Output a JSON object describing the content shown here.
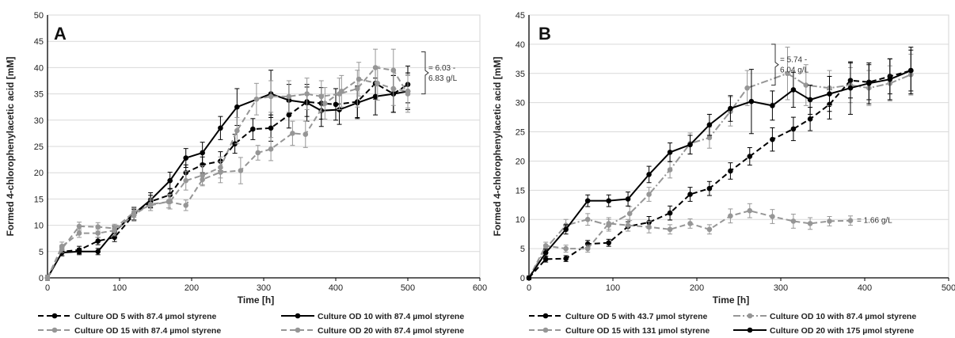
{
  "chart_data": [
    {
      "type": "line",
      "panel_label": "A",
      "xlabel": "Time [h]",
      "ylabel": "Formed 4-chlorophenylacetic acid [mM]",
      "xlim": [
        0,
        600
      ],
      "ylim": [
        0,
        50
      ],
      "xticks": [
        "0",
        "100",
        "200",
        "300",
        "400",
        "500",
        "600"
      ],
      "yticks": [
        "0",
        "5",
        "10",
        "15",
        "20",
        "25",
        "30",
        "35",
        "40",
        "45",
        "50"
      ],
      "grid": "horizontal",
      "annotation": {
        "text_line1": "= 6.03 -",
        "text_line2": "6.83 g/L",
        "y_range": [
          35,
          43
        ]
      },
      "legend": [
        "Culture OD 5 with 87.4 µmol styrene",
        "Culture OD 10 with 87.4 µmol styrene",
        "Culture OD 15 with 87.4 µmol styrene",
        "Culture OD 20 with 87.4 µmol styrene"
      ],
      "series": [
        {
          "name": "Culture OD 5 with 87.4 µmol styrene",
          "color": "#000000",
          "style": "dash",
          "x": [
            0,
            20,
            44,
            70,
            93,
            120,
            143,
            170,
            192,
            215,
            240,
            260,
            285,
            310,
            335,
            360,
            380,
            400,
            430,
            455,
            480,
            500
          ],
          "y": [
            0,
            5,
            5.3,
            7,
            7.7,
            12,
            14.5,
            15.8,
            20,
            21.5,
            22.2,
            25.5,
            28.3,
            28.5,
            31,
            33.5,
            33.2,
            33,
            33.5,
            37,
            35,
            36.8
          ],
          "err": [
            0.5,
            0.8,
            0.7,
            0.7,
            0.8,
            1,
            1.2,
            1.2,
            1.5,
            1.5,
            1.8,
            1.8,
            2,
            2.5,
            2.5,
            2.8,
            3,
            3,
            3,
            3,
            3.5,
            3.5
          ]
        },
        {
          "name": "Culture OD 10 with 87.4 µmol styrene",
          "color": "#000000",
          "style": "solid",
          "x": [
            0,
            20,
            44,
            70,
            93,
            120,
            143,
            170,
            192,
            215,
            240,
            263,
            310,
            335,
            360,
            380,
            405,
            430,
            455,
            480,
            500
          ],
          "y": [
            0,
            4.8,
            5,
            5,
            8.8,
            12.2,
            14.8,
            18.5,
            22.8,
            23.8,
            28.5,
            32.5,
            35,
            33.8,
            33.3,
            31.8,
            32,
            33.3,
            34.5,
            35,
            35.5
          ],
          "err": [
            0.5,
            0.6,
            0.6,
            0.6,
            1,
            1.2,
            1.4,
            1.6,
            1.8,
            2,
            2.2,
            3.5,
            4.5,
            3,
            3.5,
            3,
            2.8,
            3,
            3.5,
            3.5,
            3.5
          ]
        },
        {
          "name": "Culture OD 15 with 87.4 µmol styrene",
          "color": "#969696",
          "style": "dash",
          "x": [
            0,
            20,
            44,
            70,
            93,
            120,
            143,
            170,
            192,
            215,
            240,
            263,
            290,
            310,
            335,
            360,
            380,
            405,
            430,
            455,
            480,
            500
          ],
          "y": [
            0,
            6,
            8.5,
            8.5,
            9,
            12,
            14,
            14.5,
            18.5,
            19.5,
            21,
            28,
            34,
            34.5,
            34.5,
            35,
            34.5,
            35,
            36,
            40,
            39.5,
            35
          ],
          "err": [
            0.5,
            0.8,
            0.8,
            0.8,
            1,
            1.2,
            1.2,
            1.4,
            1.8,
            1.8,
            2,
            2.5,
            3,
            3,
            3,
            3,
            3,
            3,
            3.5,
            3.5,
            4,
            3.5
          ]
        },
        {
          "name": "Culture OD 20 with 87.4 µmol styrene",
          "color": "#969696",
          "style": "dash",
          "x": [
            0,
            20,
            44,
            70,
            93,
            120,
            143,
            168,
            192,
            215,
            240,
            268,
            292,
            310,
            340,
            358,
            385,
            408,
            432,
            458,
            480,
            500
          ],
          "y": [
            0,
            5.5,
            9.8,
            9.7,
            9.4,
            12.5,
            13.8,
            14.5,
            13.8,
            18.7,
            20.1,
            20.4,
            23.8,
            24.5,
            27.5,
            27.3,
            33.2,
            35.5,
            37.8,
            37,
            36,
            35.5
          ],
          "err": [
            0.5,
            0.7,
            0.8,
            0.8,
            0.8,
            1,
            1,
            1.2,
            1,
            1.2,
            2,
            2.5,
            1.4,
            2.2,
            2.3,
            2.5,
            3,
            3,
            3.2,
            3.2,
            3.2,
            3.2
          ]
        }
      ]
    },
    {
      "type": "line",
      "panel_label": "B",
      "xlabel": "Time [h]",
      "ylabel": "Formed 4-chlorophenylacetic acid [mM]",
      "xlim": [
        0,
        500
      ],
      "ylim": [
        0,
        45
      ],
      "xticks": [
        "0",
        "100",
        "200",
        "300",
        "400",
        "500"
      ],
      "yticks": [
        "0",
        "5",
        "10",
        "15",
        "20",
        "25",
        "30",
        "35",
        "40",
        "45"
      ],
      "grid": "horizontal",
      "annotation": {
        "text_line1": "= 5.74 -",
        "text_line2": "6.04 g/L",
        "y_range": [
          33,
          40
        ]
      },
      "annotation2": {
        "text": "= 1.66 g/L",
        "y": 9.8
      },
      "legend": [
        "Culture OD 5 with 43.7  µmol styrene",
        "Culture OD 10 with 87.4 µmol styrene",
        "Culture OD 15 with 131 µmol styrene",
        "Culture OD 20 with 175 µmol styrene"
      ],
      "series": [
        {
          "name": "Culture OD 5 with 43.7  µmol styrene",
          "color": "#000000",
          "style": "dash",
          "x": [
            0,
            20,
            44,
            70,
            95,
            118,
            143,
            168,
            192,
            215,
            240,
            263,
            290,
            315,
            335,
            358,
            383,
            405,
            430,
            455
          ],
          "y": [
            0,
            3.2,
            3.3,
            5.8,
            6,
            8.8,
            9.5,
            11.1,
            14.3,
            15.3,
            18.3,
            20.8,
            23.7,
            25.5,
            27.2,
            29.7,
            33.8,
            33.5,
            34.5,
            35.5
          ],
          "err": [
            0.3,
            0.5,
            0.5,
            0.6,
            0.6,
            0.8,
            1,
            1.2,
            1.2,
            1.2,
            1.4,
            1.5,
            2,
            2,
            2,
            2.5,
            3,
            3,
            3,
            3.5
          ]
        },
        {
          "name": "Culture OD 10 with 87.4 µmol styrene",
          "color": "#969696",
          "style": "dashdot",
          "x": [
            0,
            20,
            44,
            70,
            95,
            120,
            143,
            168,
            192,
            215,
            240,
            260,
            308,
            330,
            358,
            383,
            405,
            430,
            455
          ],
          "y": [
            0,
            5,
            9,
            10,
            9,
            11,
            14.3,
            18.5,
            23,
            24,
            28.5,
            32.5,
            35,
            33,
            32.5,
            33,
            32.5,
            33.3,
            34.8
          ],
          "err": [
            0.3,
            0.6,
            1,
            1,
            1,
            1.2,
            1.2,
            1.4,
            1.8,
            1.8,
            2.5,
            3,
            4.5,
            3.5,
            3,
            3,
            3,
            3,
            3.5
          ]
        },
        {
          "name": "Culture OD 15 with 131 µmol styrene",
          "color": "#969696",
          "style": "dash",
          "x": [
            0,
            20,
            44,
            70,
            95,
            118,
            143,
            168,
            192,
            215,
            240,
            263,
            290,
            315,
            335,
            358,
            383
          ],
          "y": [
            0,
            5.5,
            5,
            5,
            9.3,
            9,
            8.7,
            8.3,
            9.3,
            8.3,
            10.6,
            11.5,
            10.5,
            9.7,
            9.3,
            9.7,
            9.8
          ],
          "err": [
            0.3,
            0.6,
            0.6,
            0.6,
            1,
            1,
            1,
            0.8,
            0.8,
            0.8,
            1.2,
            1.2,
            1.2,
            1.2,
            1,
            0.8,
            0.8
          ]
        },
        {
          "name": "Culture OD 20 with 175 µmol styrene",
          "color": "#000000",
          "style": "solid",
          "x": [
            0,
            20,
            44,
            70,
            95,
            118,
            143,
            168,
            192,
            215,
            240,
            265,
            290,
            315,
            335,
            358,
            383,
            405,
            430,
            455
          ],
          "y": [
            0,
            4.3,
            8.3,
            13.2,
            13.2,
            13.5,
            17.7,
            21.5,
            22.8,
            26.2,
            29,
            30.2,
            29.5,
            32.2,
            30.5,
            31.5,
            32.5,
            33.3,
            34,
            35.5
          ],
          "err": [
            0.3,
            0.6,
            0.8,
            1,
            1,
            1.2,
            1.4,
            1.6,
            1.6,
            1.8,
            2.2,
            5.5,
            2.5,
            3,
            2.5,
            3,
            4.5,
            3.5,
            3.5,
            4
          ]
        }
      ]
    }
  ]
}
